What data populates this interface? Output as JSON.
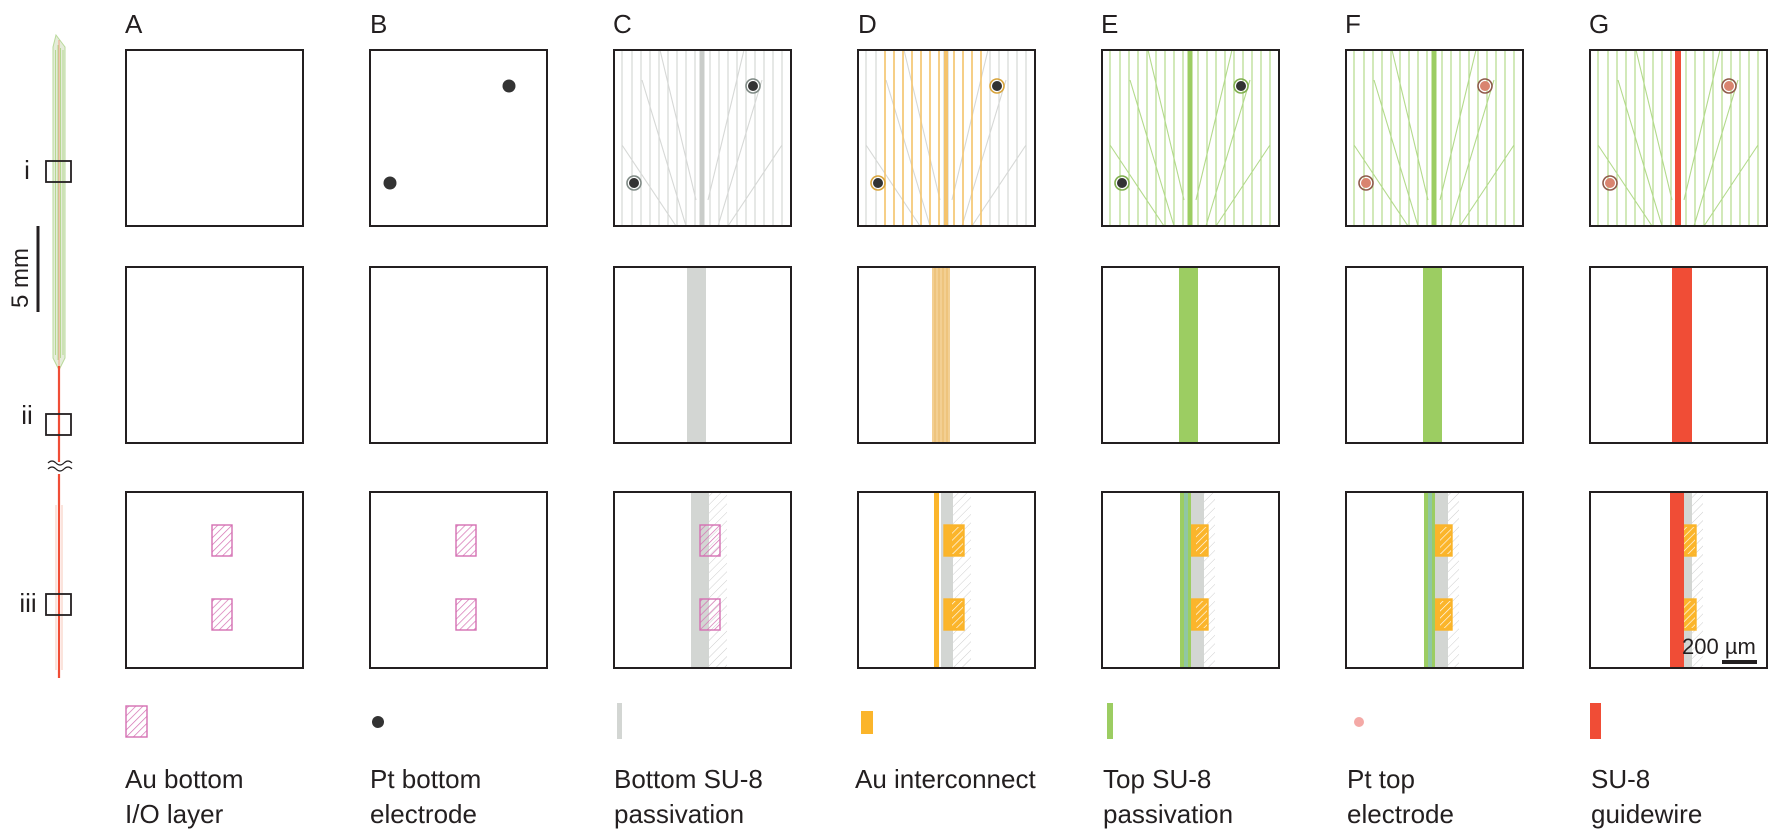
{
  "columns": [
    {
      "letter": "A",
      "legend": [
        "Au bottom",
        "I/O layer"
      ],
      "legend_symbol": "hatched-pink-square-icon"
    },
    {
      "letter": "B",
      "legend": [
        "Pt bottom",
        "electrode"
      ],
      "legend_symbol": "dark-dot-icon"
    },
    {
      "letter": "C",
      "legend": [
        "Bottom SU-8",
        "passivation"
      ],
      "legend_symbol": "grey-bar-icon"
    },
    {
      "letter": "D",
      "legend": [
        "Au interconnect",
        ""
      ],
      "legend_symbol": "orange-square-icon"
    },
    {
      "letter": "E",
      "legend": [
        "Top SU-8",
        "passivation"
      ],
      "legend_symbol": "green-bar-icon"
    },
    {
      "letter": "F",
      "legend": [
        "Pt top",
        "electrode"
      ],
      "legend_symbol": "pink-dot-icon"
    },
    {
      "letter": "G",
      "legend": [
        "SU-8",
        "guidewire"
      ],
      "legend_symbol": "red-bar-icon"
    }
  ],
  "rows": [
    "i",
    "ii",
    "iii"
  ],
  "scale_bar_probe": "5 mm",
  "scale_bar_panel": "200 µm",
  "colors": {
    "au_bottom": "#d46fb2",
    "pt_bottom": "#333333",
    "bottom_su8": "#d3d6d3",
    "au_interconnect": "#fbb52b",
    "top_su8": "#9ccd62",
    "pt_top": "#f4a9a6",
    "guidewire": "#f04d36",
    "frame": "#231f20"
  }
}
